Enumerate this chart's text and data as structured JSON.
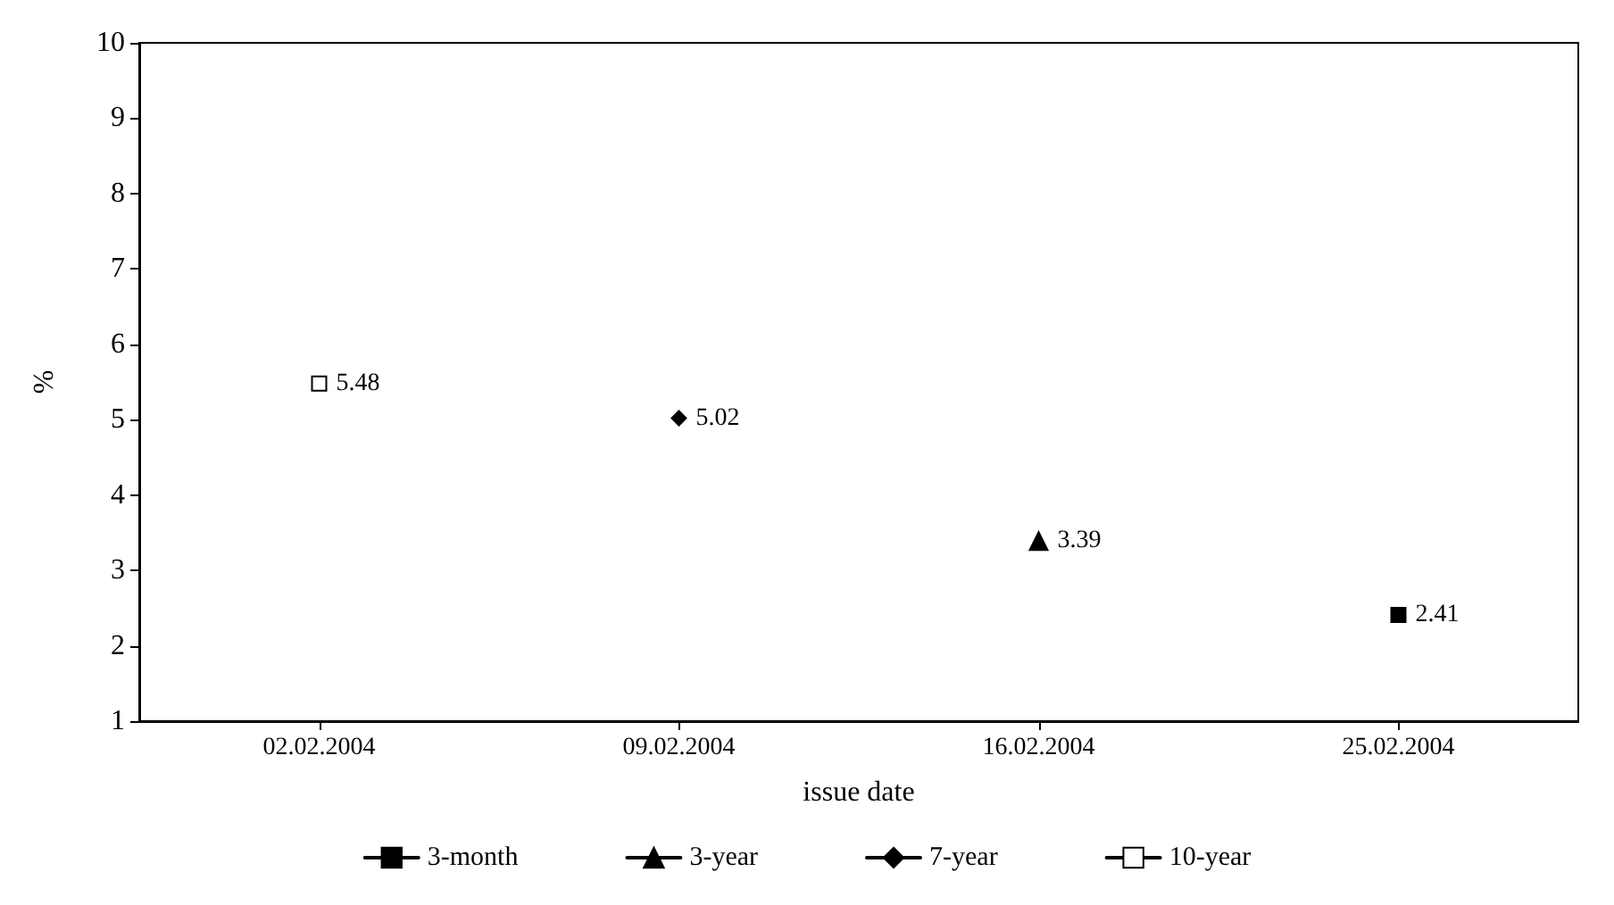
{
  "chart_data": {
    "type": "line",
    "xlabel": "issue date",
    "ylabel": "%",
    "categories": [
      "02.02.2004",
      "09.02.2004",
      "16.02.2004",
      "25.02.2004"
    ],
    "series": [
      {
        "name": "3-month",
        "color": "#000000",
        "marker": "square",
        "values": [
          null,
          null,
          null,
          2.41
        ]
      },
      {
        "name": "3-year",
        "color": "#000000",
        "marker": "triangle",
        "values": [
          null,
          null,
          3.39,
          null
        ]
      },
      {
        "name": "7-year",
        "color": "#000000",
        "marker": "diamond",
        "values": [
          null,
          5.02,
          null,
          null
        ]
      },
      {
        "name": "10-year",
        "color": "#ffffff",
        "marker": "square",
        "values": [
          5.48,
          null,
          null,
          null
        ]
      }
    ],
    "ylim": [
      1,
      10
    ],
    "yticks": [
      1,
      2,
      3,
      4,
      5,
      6,
      7,
      8,
      9,
      10
    ],
    "grid": false,
    "legend": "bottom",
    "data_labels": true
  }
}
